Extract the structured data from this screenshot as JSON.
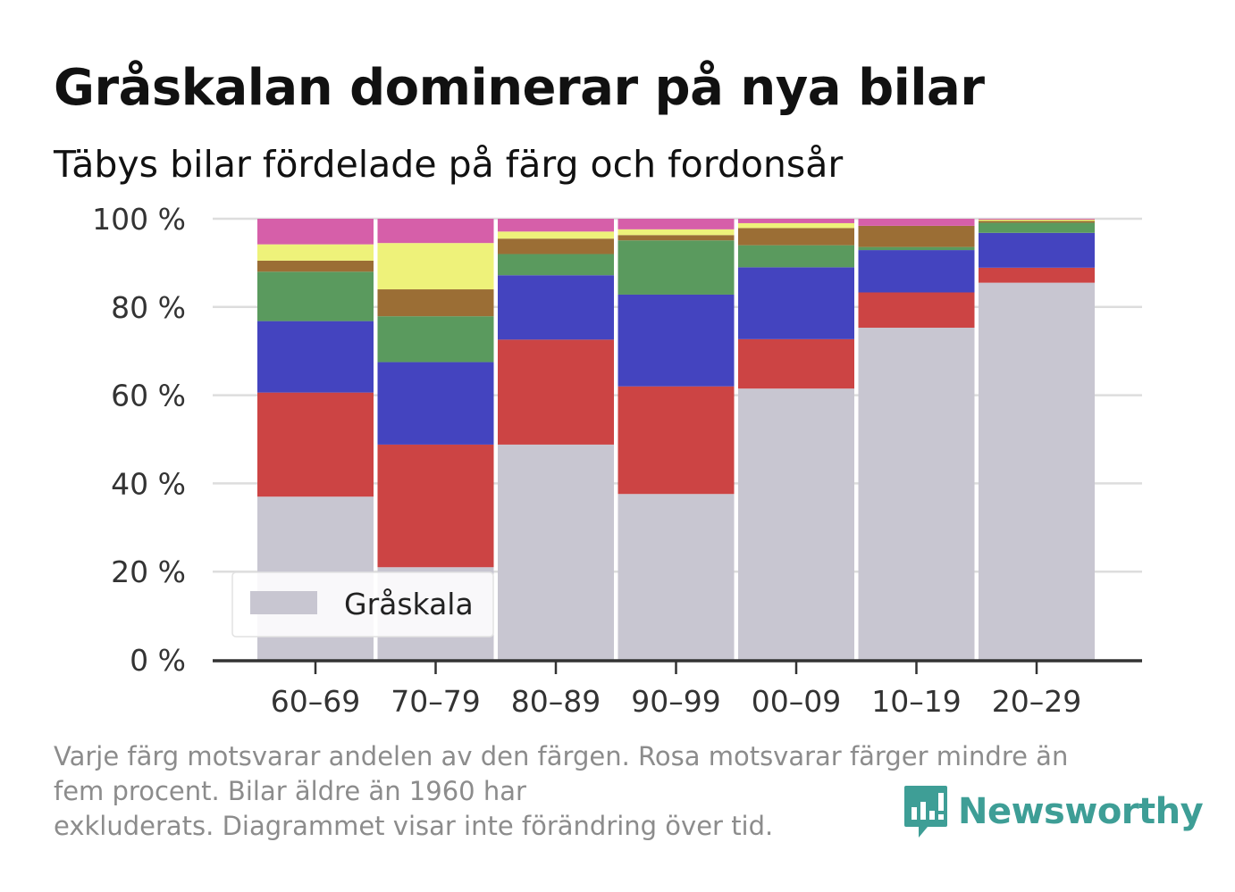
{
  "header": {
    "title": "Gråskalan dominerar på nya bilar",
    "subtitle": "Täbys bilar fördelade på färg och fordonsår"
  },
  "chart_data": {
    "type": "bar",
    "stacked": true,
    "categories": [
      "60–69",
      "70–79",
      "80–89",
      "90–99",
      "00–09",
      "10–19",
      "20–29"
    ],
    "ylim": [
      0,
      100
    ],
    "yticks": [
      0,
      20,
      40,
      60,
      80,
      100
    ],
    "ytick_labels": [
      "0 %",
      "20 %",
      "40 %",
      "60 %",
      "80 %",
      "100 %"
    ],
    "grid": "horizontal",
    "legend_position": "bottom-left",
    "series": [
      {
        "name": "Gråskala",
        "color": "#c8c6d1",
        "values": [
          37.0,
          21.0,
          48.8,
          37.6,
          61.5,
          75.3,
          85.5
        ]
      },
      {
        "color": "#cc4444",
        "values": [
          23.6,
          27.8,
          23.8,
          24.4,
          11.2,
          8.0,
          3.4
        ]
      },
      {
        "color": "#4444bf",
        "values": [
          16.2,
          18.7,
          14.6,
          20.8,
          16.3,
          9.6,
          7.9
        ]
      },
      {
        "color": "#5a9a5e",
        "values": [
          11.2,
          10.4,
          4.8,
          12.3,
          5.0,
          0.7,
          2.3
        ]
      },
      {
        "color": "#9b6e35",
        "values": [
          2.5,
          6.1,
          3.5,
          1.2,
          3.9,
          4.8,
          0.4
        ]
      },
      {
        "color": "#eef27a",
        "values": [
          3.7,
          10.5,
          1.6,
          1.3,
          1.1,
          0.0,
          0.3
        ]
      },
      {
        "color": "#d65fa9",
        "values": [
          5.8,
          5.5,
          2.9,
          2.4,
          1.0,
          1.6,
          0.2
        ]
      }
    ]
  },
  "footnote": {
    "line1": "Varje färg motsvarar andelen av den färgen. Rosa motsvarar färger mindre än",
    "line2": "fem procent. Bilar äldre än 1960 har",
    "line3": "exkluderats. Diagrammet visar inte förändring över tid."
  },
  "brand": {
    "name": "Newsworthy",
    "color": "#3e9e96",
    "logo_icon": "bar-chart-speech-bubble-icon"
  }
}
